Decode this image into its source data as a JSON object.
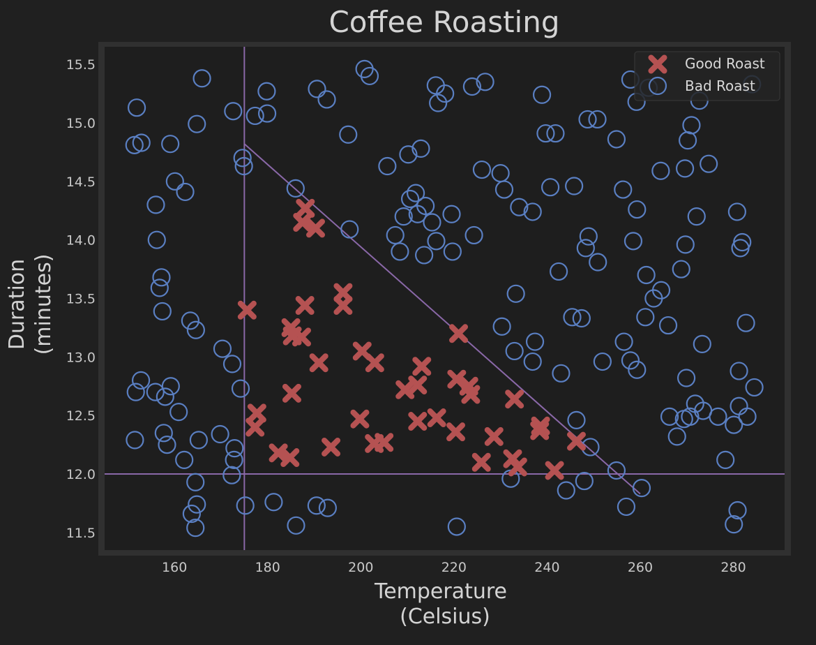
{
  "colors": {
    "background": "#202020",
    "axes_frame": "#303030",
    "plot_background": "#1e1e1e",
    "good": "#b55252",
    "bad": "#5a7fc2",
    "boundary": "#8a68a8",
    "text": "#d4d4d4"
  },
  "chart_data": {
    "type": "scatter",
    "title": "Coffee Roasting",
    "xlabel_line1": "Temperature",
    "xlabel_line2": "(Celsius)",
    "ylabel_line1": "Duration",
    "ylabel_line2": "(minutes)",
    "xlim": [
      145,
      291
    ],
    "ylim": [
      11.35,
      15.65
    ],
    "xticks": [
      160,
      180,
      200,
      220,
      240,
      260,
      280
    ],
    "yticks": [
      11.5,
      12.0,
      12.5,
      13.0,
      13.5,
      14.0,
      14.5,
      15.0,
      15.5
    ],
    "ytick_labels": [
      "11.5",
      "12.0",
      "12.5",
      "13.0",
      "13.5",
      "14.0",
      "14.5",
      "15.0",
      "15.5"
    ],
    "legend": {
      "location": "top-right",
      "entries": [
        "Good Roast",
        "Bad Roast"
      ]
    },
    "series": [
      {
        "name": "Good Roast",
        "marker": "x",
        "points": [
          [
            175.6,
            13.4
          ],
          [
            188.1,
            14.27
          ],
          [
            187.5,
            14.15
          ],
          [
            190.3,
            14.1
          ],
          [
            188.0,
            13.44
          ],
          [
            185.0,
            13.25
          ],
          [
            185.3,
            13.18
          ],
          [
            187.3,
            13.17
          ],
          [
            196.2,
            13.55
          ],
          [
            196.2,
            13.44
          ],
          [
            191.0,
            12.95
          ],
          [
            177.7,
            12.52
          ],
          [
            177.3,
            12.4
          ],
          [
            185.2,
            12.69
          ],
          [
            182.3,
            12.18
          ],
          [
            184.8,
            12.14
          ],
          [
            193.6,
            12.23
          ],
          [
            200.3,
            13.05
          ],
          [
            203.0,
            12.95
          ],
          [
            199.8,
            12.47
          ],
          [
            202.9,
            12.26
          ],
          [
            205.0,
            12.27
          ],
          [
            209.5,
            12.72
          ],
          [
            212.2,
            12.76
          ],
          [
            213.1,
            12.92
          ],
          [
            212.2,
            12.45
          ],
          [
            216.3,
            12.48
          ],
          [
            220.6,
            12.81
          ],
          [
            221.0,
            13.2
          ],
          [
            223.2,
            12.75
          ],
          [
            223.6,
            12.68
          ],
          [
            220.4,
            12.36
          ],
          [
            225.9,
            12.1
          ],
          [
            228.6,
            12.32
          ],
          [
            233.0,
            12.64
          ],
          [
            232.6,
            12.13
          ],
          [
            233.7,
            12.06
          ],
          [
            238.6,
            12.41
          ],
          [
            238.4,
            12.37
          ],
          [
            241.6,
            12.03
          ],
          [
            246.3,
            12.28
          ]
        ]
      },
      {
        "name": "Bad Roast",
        "marker": "o",
        "points": [
          [
            151.5,
            12.29
          ],
          [
            151.7,
            12.7
          ],
          [
            152.8,
            12.8
          ],
          [
            151.9,
            15.13
          ],
          [
            151.4,
            14.81
          ],
          [
            152.9,
            14.83
          ],
          [
            159.1,
            14.82
          ],
          [
            156.0,
            14.3
          ],
          [
            156.2,
            14.0
          ],
          [
            156.8,
            13.59
          ],
          [
            157.2,
            13.68
          ],
          [
            157.4,
            13.39
          ],
          [
            160.1,
            14.5
          ],
          [
            162.3,
            14.41
          ],
          [
            164.8,
            14.99
          ],
          [
            165.9,
            15.38
          ],
          [
            155.9,
            12.7
          ],
          [
            158.0,
            12.66
          ],
          [
            159.2,
            12.75
          ],
          [
            160.9,
            12.53
          ],
          [
            157.7,
            12.35
          ],
          [
            158.4,
            12.25
          ],
          [
            162.1,
            12.12
          ],
          [
            165.2,
            12.29
          ],
          [
            163.4,
            13.31
          ],
          [
            164.6,
            13.23
          ],
          [
            170.3,
            13.07
          ],
          [
            172.4,
            12.94
          ],
          [
            174.2,
            12.73
          ],
          [
            172.9,
            12.22
          ],
          [
            172.8,
            12.12
          ],
          [
            172.3,
            11.99
          ],
          [
            169.8,
            12.34
          ],
          [
            164.5,
            11.93
          ],
          [
            164.8,
            11.74
          ],
          [
            163.7,
            11.66
          ],
          [
            164.5,
            11.54
          ],
          [
            175.2,
            11.73
          ],
          [
            181.3,
            11.76
          ],
          [
            186.1,
            11.56
          ],
          [
            190.5,
            11.73
          ],
          [
            192.9,
            11.71
          ],
          [
            220.6,
            11.55
          ],
          [
            172.6,
            15.1
          ],
          [
            177.3,
            15.06
          ],
          [
            179.9,
            15.08
          ],
          [
            179.8,
            15.27
          ],
          [
            174.6,
            14.7
          ],
          [
            174.9,
            14.63
          ],
          [
            186.0,
            14.44
          ],
          [
            190.6,
            15.29
          ],
          [
            192.7,
            15.2
          ],
          [
            197.3,
            14.9
          ],
          [
            200.8,
            15.46
          ],
          [
            201.9,
            15.4
          ],
          [
            197.6,
            14.09
          ],
          [
            205.7,
            14.63
          ],
          [
            210.2,
            14.73
          ],
          [
            212.9,
            14.78
          ],
          [
            216.1,
            15.32
          ],
          [
            216.6,
            15.17
          ],
          [
            218.1,
            15.25
          ],
          [
            223.9,
            15.31
          ],
          [
            226.7,
            15.35
          ],
          [
            207.4,
            14.04
          ],
          [
            208.4,
            13.9
          ],
          [
            209.2,
            14.2
          ],
          [
            210.6,
            14.35
          ],
          [
            211.8,
            14.4
          ],
          [
            212.2,
            14.22
          ],
          [
            213.9,
            14.29
          ],
          [
            215.3,
            14.15
          ],
          [
            216.2,
            13.99
          ],
          [
            213.6,
            13.87
          ],
          [
            219.5,
            14.22
          ],
          [
            219.7,
            13.9
          ],
          [
            224.3,
            14.04
          ],
          [
            226.0,
            14.6
          ],
          [
            230.0,
            14.57
          ],
          [
            230.8,
            14.43
          ],
          [
            234.0,
            14.28
          ],
          [
            236.9,
            14.24
          ],
          [
            238.9,
            15.24
          ],
          [
            239.7,
            14.91
          ],
          [
            241.8,
            14.91
          ],
          [
            240.7,
            14.45
          ],
          [
            245.8,
            14.46
          ],
          [
            248.7,
            15.03
          ],
          [
            250.8,
            15.03
          ],
          [
            254.9,
            14.86
          ],
          [
            257.9,
            15.37
          ],
          [
            259.2,
            15.18
          ],
          [
            261.8,
            15.3
          ],
          [
            256.3,
            14.43
          ],
          [
            259.3,
            14.26
          ],
          [
            258.5,
            13.99
          ],
          [
            264.4,
            14.59
          ],
          [
            269.6,
            14.61
          ],
          [
            270.2,
            14.85
          ],
          [
            271.0,
            14.98
          ],
          [
            272.7,
            15.19
          ],
          [
            274.7,
            14.65
          ],
          [
            272.1,
            14.2
          ],
          [
            269.7,
            13.96
          ],
          [
            268.8,
            13.75
          ],
          [
            261.3,
            13.7
          ],
          [
            262.9,
            13.5
          ],
          [
            264.5,
            13.57
          ],
          [
            261.1,
            13.34
          ],
          [
            266.0,
            13.27
          ],
          [
            256.5,
            13.13
          ],
          [
            257.9,
            12.97
          ],
          [
            259.3,
            12.89
          ],
          [
            251.9,
            12.96
          ],
          [
            245.4,
            13.34
          ],
          [
            247.4,
            13.33
          ],
          [
            242.5,
            13.73
          ],
          [
            248.9,
            14.03
          ],
          [
            248.3,
            13.93
          ],
          [
            250.9,
            13.81
          ],
          [
            233.3,
            13.54
          ],
          [
            230.3,
            13.26
          ],
          [
            233.0,
            13.05
          ],
          [
            236.9,
            12.96
          ],
          [
            237.4,
            13.13
          ],
          [
            243.0,
            12.86
          ],
          [
            246.3,
            12.46
          ],
          [
            249.3,
            12.23
          ],
          [
            254.9,
            12.03
          ],
          [
            244.1,
            11.86
          ],
          [
            248.0,
            11.94
          ],
          [
            232.2,
            11.96
          ],
          [
            257.0,
            11.72
          ],
          [
            260.3,
            11.88
          ],
          [
            269.9,
            12.82
          ],
          [
            266.3,
            12.49
          ],
          [
            267.9,
            12.32
          ],
          [
            269.4,
            12.47
          ],
          [
            270.7,
            12.49
          ],
          [
            271.8,
            12.6
          ],
          [
            273.5,
            12.54
          ],
          [
            276.7,
            12.49
          ],
          [
            273.3,
            13.11
          ],
          [
            278.3,
            12.12
          ],
          [
            280.1,
            12.42
          ],
          [
            281.2,
            12.58
          ],
          [
            283.0,
            12.49
          ],
          [
            281.2,
            12.88
          ],
          [
            282.7,
            13.29
          ],
          [
            284.5,
            12.74
          ],
          [
            280.8,
            14.24
          ],
          [
            281.9,
            13.98
          ],
          [
            281.5,
            13.93
          ],
          [
            280.9,
            11.69
          ],
          [
            280.1,
            11.57
          ],
          [
            284.0,
            15.33
          ]
        ]
      }
    ],
    "decision_lines": [
      {
        "x": [
          175,
          175
        ],
        "y": [
          11.35,
          15.65
        ]
      },
      {
        "x": [
          145,
          291
        ],
        "y": [
          12.0,
          12.0
        ]
      },
      {
        "x": [
          175,
          260
        ],
        "y": [
          14.82,
          11.83
        ]
      }
    ]
  }
}
